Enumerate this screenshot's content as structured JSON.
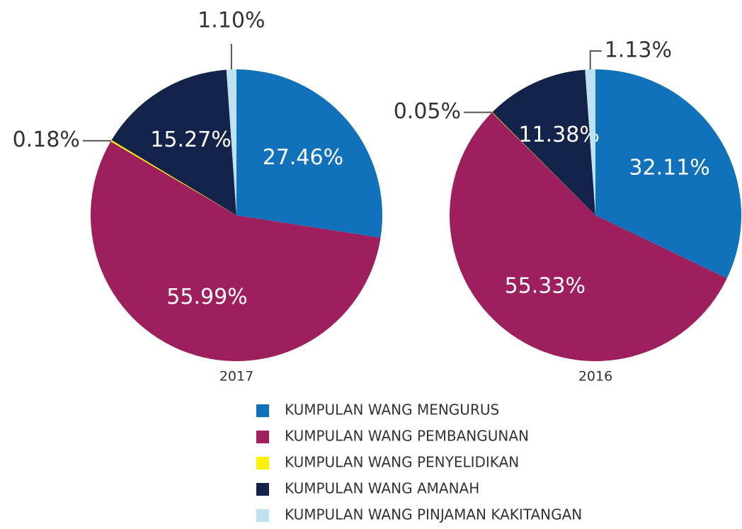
{
  "chart_data": [
    {
      "type": "pie",
      "title": "2017",
      "categories": [
        "KUMPULAN WANG MENGURUS",
        "KUMPULAN WANG PEMBANGUNAN",
        "KUMPULAN WANG PENYELIDIKAN",
        "KUMPULAN WANG AMANAH",
        "KUMPULAN WANG PINJAMAN KAKITANGAN"
      ],
      "values": [
        27.46,
        55.99,
        0.18,
        15.27,
        1.1
      ],
      "value_labels": [
        "27.46%",
        "55.99%",
        "0.18%",
        "15.27%",
        "1.10%"
      ],
      "colors": [
        "#1172bb",
        "#9e1f5e",
        "#fff200",
        "#13234a",
        "#bde3f3"
      ]
    },
    {
      "type": "pie",
      "title": "2016",
      "values": [
        32.11,
        55.33,
        0.05,
        11.38,
        1.13
      ],
      "value_labels": [
        "32.11%",
        "55.33%",
        "0.05%",
        "11.38%",
        "1.13%"
      ],
      "colors": [
        "#1172bb",
        "#9e1f5e",
        "#fff200",
        "#13234a",
        "#bde3f3"
      ]
    }
  ]
}
